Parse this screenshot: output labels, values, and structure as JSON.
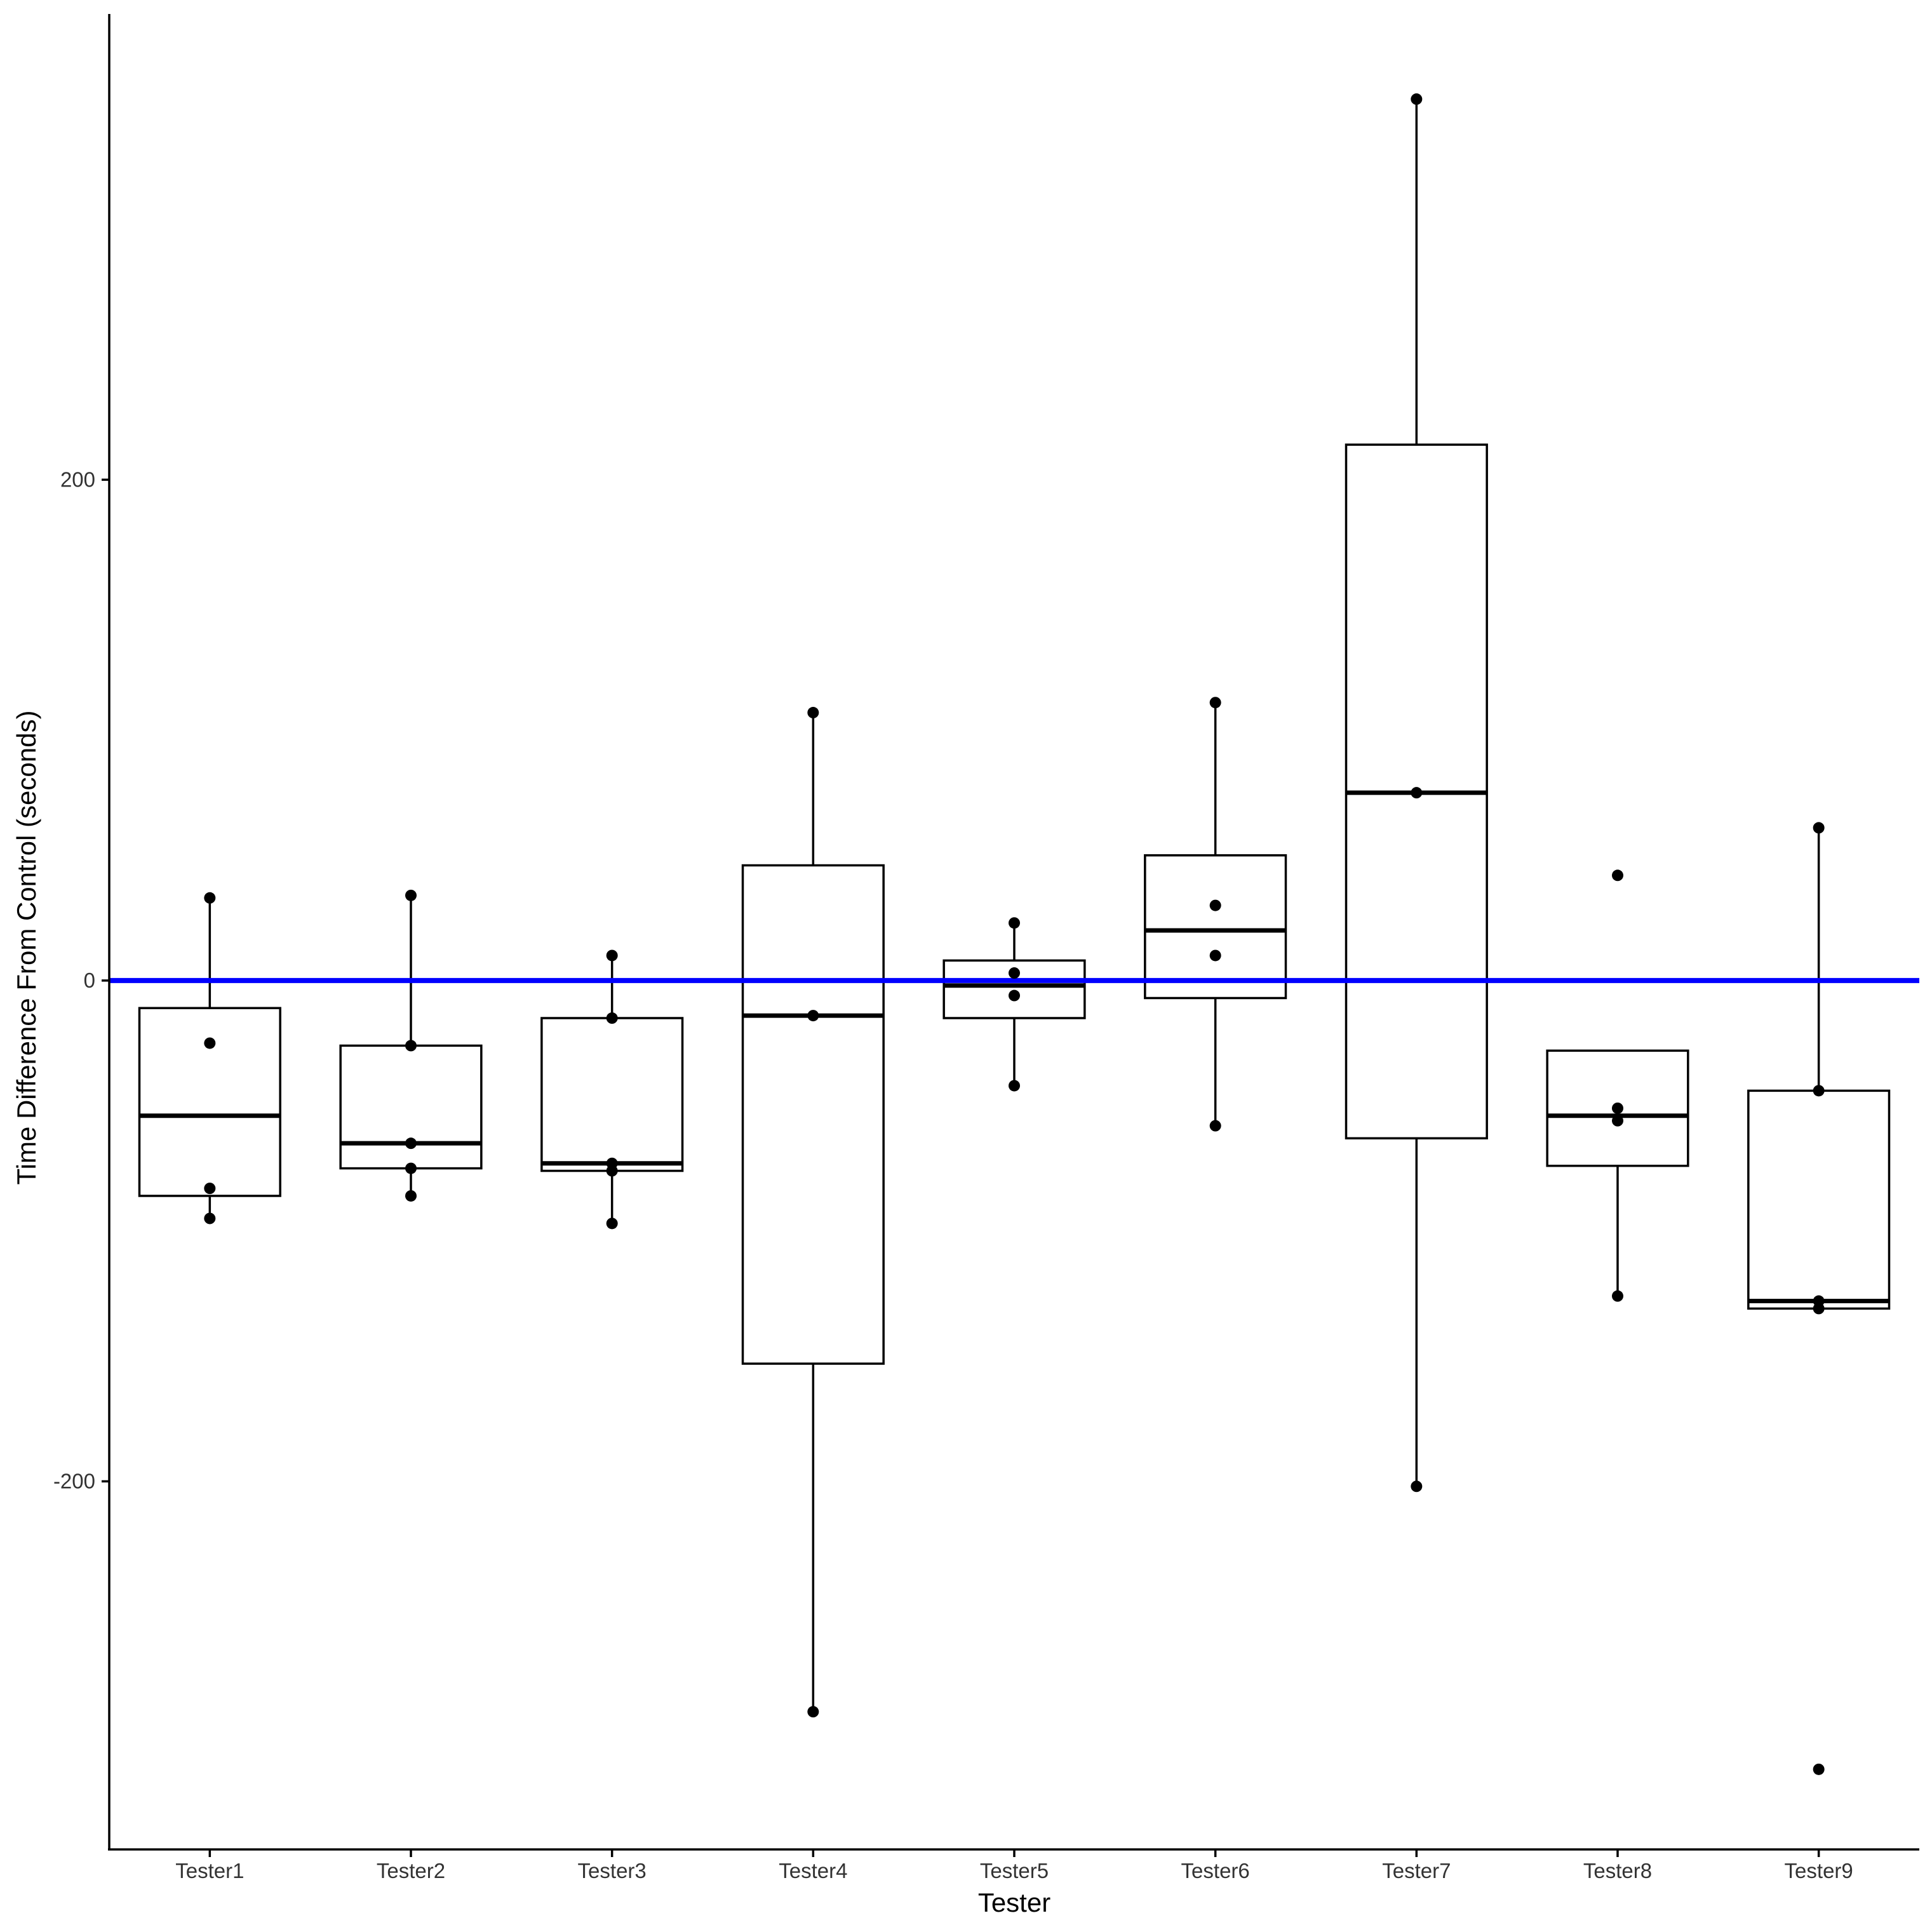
{
  "chart_data": {
    "type": "box",
    "title": "",
    "xlabel": "Tester",
    "ylabel": "Time Difference From Control (seconds)",
    "ylim": [
      -347,
      386
    ],
    "yticks": [
      -200,
      0,
      200
    ],
    "grid": false,
    "reference_line": {
      "y": 0,
      "color": "#0000FF"
    },
    "categories": [
      "Tester1",
      "Tester2",
      "Tester3",
      "Tester4",
      "Tester5",
      "Tester6",
      "Tester7",
      "Tester8",
      "Tester9"
    ],
    "boxes": [
      {
        "category": "Tester1",
        "q1": -86,
        "median": -54,
        "q3": -11,
        "whisker_low": -95,
        "whisker_high": 33
      },
      {
        "category": "Tester2",
        "q1": -75,
        "median": -65,
        "q3": -26,
        "whisker_low": -86,
        "whisker_high": 34
      },
      {
        "category": "Tester3",
        "q1": -76,
        "median": -73,
        "q3": -15,
        "whisker_low": -97,
        "whisker_high": 10
      },
      {
        "category": "Tester4",
        "q1": -153,
        "median": -14,
        "q3": 46,
        "whisker_low": -292,
        "whisker_high": 107
      },
      {
        "category": "Tester5",
        "q1": -15,
        "median": -2,
        "q3": 8,
        "whisker_low": -42,
        "whisker_high": 23
      },
      {
        "category": "Tester6",
        "q1": -7,
        "median": 20,
        "q3": 50,
        "whisker_low": -58,
        "whisker_high": 111
      },
      {
        "category": "Tester7",
        "q1": -63,
        "median": 75,
        "q3": 214,
        "whisker_low": -202,
        "whisker_high": 352
      },
      {
        "category": "Tester8",
        "q1": -74,
        "median": -54,
        "q3": -28,
        "whisker_low": -126,
        "whisker_high": -28
      },
      {
        "category": "Tester9",
        "q1": -131,
        "median": -128,
        "q3": -44,
        "whisker_low": -131,
        "whisker_high": 61
      }
    ],
    "points": [
      {
        "category": "Tester1",
        "values": [
          33,
          -25,
          -83,
          -95
        ]
      },
      {
        "category": "Tester2",
        "values": [
          34,
          -26,
          -65,
          -75,
          -86
        ]
      },
      {
        "category": "Tester3",
        "values": [
          10,
          -15,
          -73,
          -76,
          -97
        ]
      },
      {
        "category": "Tester4",
        "values": [
          107,
          -14,
          -292
        ]
      },
      {
        "category": "Tester5",
        "values": [
          23,
          3,
          -6,
          -42
        ]
      },
      {
        "category": "Tester6",
        "values": [
          111,
          30,
          10,
          -58
        ]
      },
      {
        "category": "Tester7",
        "values": [
          352,
          75,
          -202
        ]
      },
      {
        "category": "Tester8",
        "values": [
          42,
          -51,
          -56,
          -126
        ]
      },
      {
        "category": "Tester9",
        "values": [
          61,
          -44,
          -128,
          -131,
          -315
        ]
      }
    ],
    "colors": {
      "box_stroke": "#000000",
      "box_fill": "#FFFFFF",
      "points": "#000000",
      "reference": "#0000FF",
      "axis": "#000000"
    }
  }
}
